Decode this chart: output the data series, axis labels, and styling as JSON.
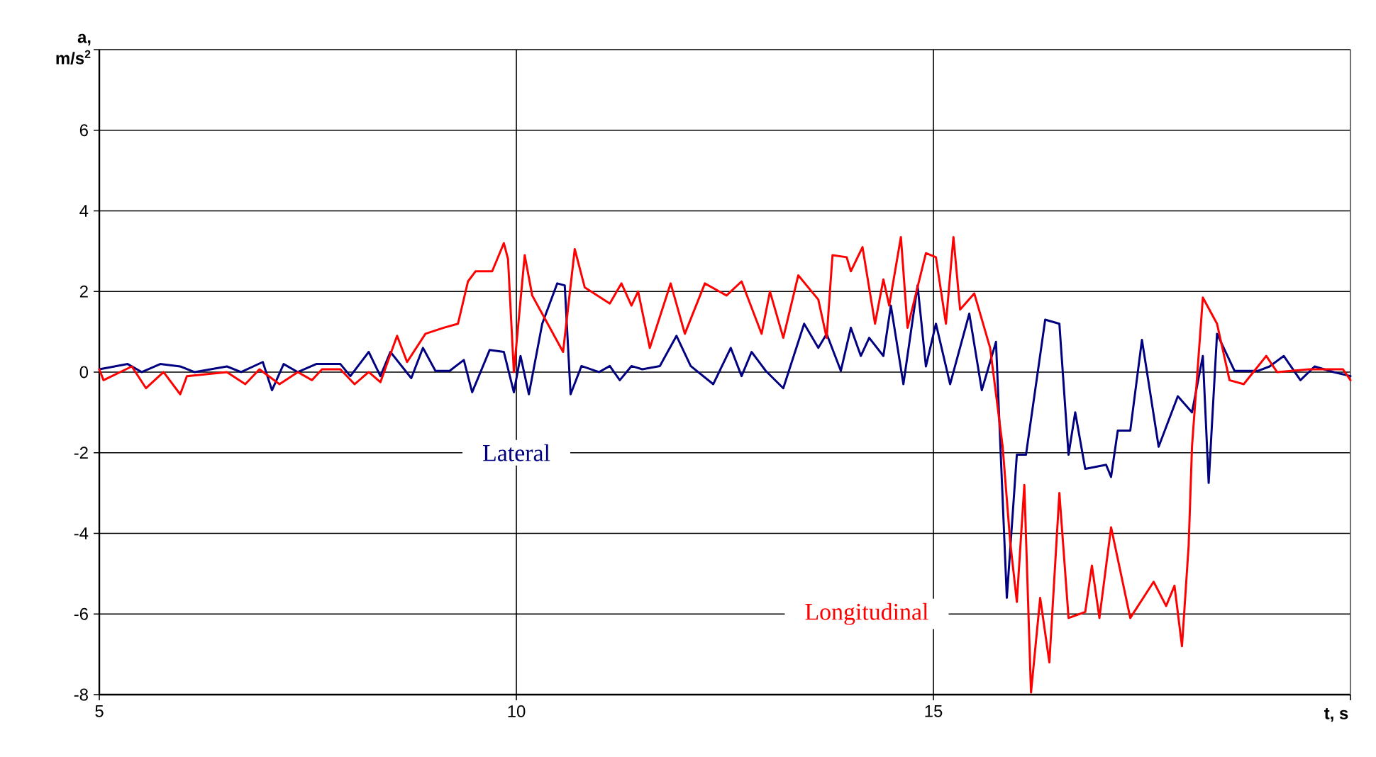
{
  "chart_data": {
    "type": "line",
    "xlabel": "t, s",
    "ylabel": "a, m/s$^{2}$",
    "xlim": [
      5,
      20
    ],
    "ylim": [
      -8,
      8
    ],
    "xticks": [
      5,
      10,
      15,
      {
        "value": 20,
        "label": null
      }
    ],
    "yticks": [
      -8,
      -6,
      -4,
      -2,
      0,
      2,
      4,
      6,
      {
        "value": 8,
        "label": null
      }
    ],
    "grid": true,
    "marker": "none",
    "line_style": "solid",
    "series": [
      {
        "name": "Lateral",
        "color": "#000080",
        "x": [
          5.0,
          5.34,
          5.51,
          5.73,
          5.97,
          6.14,
          6.53,
          6.7,
          6.96,
          7.07,
          7.21,
          7.38,
          7.6,
          7.89,
          8.01,
          8.23,
          8.37,
          8.49,
          8.74,
          8.88,
          9.03,
          9.2,
          9.37,
          9.47,
          9.68,
          9.85,
          9.97,
          10.05,
          10.15,
          10.31,
          10.49,
          10.58,
          10.65,
          10.78,
          10.99,
          11.12,
          11.24,
          11.38,
          11.51,
          11.72,
          11.92,
          12.09,
          12.36,
          12.57,
          12.7,
          12.82,
          12.99,
          13.2,
          13.45,
          13.62,
          13.72,
          13.89,
          14.01,
          14.13,
          14.23,
          14.4,
          14.49,
          14.64,
          14.81,
          14.91,
          15.03,
          15.2,
          15.43,
          15.58,
          15.75,
          15.88,
          16.0,
          16.11,
          16.34,
          16.51,
          16.62,
          16.7,
          16.82,
          17.07,
          17.13,
          17.21,
          17.36,
          17.5,
          17.7,
          17.93,
          18.1,
          18.23,
          18.3,
          18.4,
          18.61,
          18.89,
          19.03,
          19.2,
          19.4,
          19.57,
          19.8,
          20.0
        ],
        "values": [
          0.07,
          0.2,
          0,
          0.2,
          0.14,
          0,
          0.14,
          0,
          0.25,
          -0.45,
          0.2,
          0,
          0.2,
          0.2,
          -0.1,
          0.5,
          -0.1,
          0.5,
          -0.15,
          0.6,
          0.03,
          0.03,
          0.3,
          -0.5,
          0.55,
          0.5,
          -0.5,
          0.4,
          -0.55,
          1.2,
          2.2,
          2.15,
          -0.55,
          0.15,
          0,
          0.15,
          -0.2,
          0.15,
          0.07,
          0.15,
          0.9,
          0.15,
          -0.3,
          0.6,
          -0.1,
          0.5,
          0.03,
          -0.4,
          1.2,
          0.6,
          0.95,
          0.03,
          1.1,
          0.4,
          0.85,
          0.4,
          1.65,
          -0.3,
          2.15,
          0.14,
          1.2,
          -0.3,
          1.45,
          -0.45,
          0.75,
          -5.6,
          -2.05,
          -2.05,
          1.3,
          1.2,
          -2.05,
          -1.0,
          -2.4,
          -2.3,
          -2.6,
          -1.45,
          -1.45,
          0.8,
          -1.85,
          -0.6,
          -1.0,
          0.4,
          -2.75,
          0.95,
          0.03,
          0.03,
          0.14,
          0.4,
          -0.2,
          0.14,
          0,
          -0.1
        ]
      },
      {
        "name": "Longitudinal",
        "color": "#ff0000",
        "x": [
          5.0,
          5.05,
          5.39,
          5.56,
          5.77,
          5.97,
          6.05,
          6.53,
          6.75,
          6.92,
          7.16,
          7.38,
          7.55,
          7.67,
          7.89,
          8.06,
          8.23,
          8.37,
          8.57,
          8.69,
          8.91,
          9.13,
          9.3,
          9.42,
          9.51,
          9.71,
          9.85,
          9.9,
          9.97,
          10.1,
          10.19,
          10.56,
          10.7,
          10.82,
          11.12,
          11.26,
          11.38,
          11.46,
          11.6,
          11.85,
          12.02,
          12.26,
          12.52,
          12.7,
          12.94,
          13.04,
          13.2,
          13.38,
          13.62,
          13.72,
          13.79,
          13.96,
          14.01,
          14.15,
          14.3,
          14.4,
          14.47,
          14.61,
          14.69,
          14.91,
          15.03,
          15.15,
          15.24,
          15.32,
          15.49,
          15.68,
          15.83,
          15.92,
          16.0,
          16.09,
          16.17,
          16.28,
          16.39,
          16.51,
          16.62,
          16.82,
          16.9,
          16.99,
          17.13,
          17.36,
          17.64,
          17.79,
          17.89,
          17.98,
          18.06,
          18.1,
          18.23,
          18.4,
          18.55,
          18.72,
          18.99,
          19.12,
          19.51,
          19.91,
          20.0
        ],
        "values": [
          0.07,
          -0.2,
          0.14,
          -0.4,
          0,
          -0.55,
          -0.1,
          0,
          -0.3,
          0.07,
          -0.3,
          0,
          -0.2,
          0.07,
          0.07,
          -0.3,
          0,
          -0.25,
          0.9,
          0.25,
          0.95,
          1.1,
          1.2,
          2.25,
          2.5,
          2.5,
          3.2,
          2.8,
          0,
          2.9,
          1.9,
          0.5,
          3.05,
          2.1,
          1.7,
          2.2,
          1.65,
          2,
          0.6,
          2.2,
          0.95,
          2.2,
          1.9,
          2.25,
          0.95,
          2,
          0.85,
          2.4,
          1.8,
          0.85,
          2.9,
          2.85,
          2.5,
          3.1,
          1.2,
          2.3,
          1.65,
          3.35,
          1.1,
          2.95,
          2.85,
          1.2,
          3.35,
          1.55,
          1.95,
          0.6,
          -1.85,
          -4.2,
          -5.7,
          -2.8,
          -7.95,
          -5.6,
          -7.2,
          -3,
          -6.1,
          -5.95,
          -4.8,
          -6.1,
          -3.85,
          -6.1,
          -5.2,
          -5.8,
          -5.3,
          -6.8,
          -4.3,
          -1.85,
          1.85,
          1.2,
          -0.2,
          -0.3,
          0.4,
          0,
          0.07,
          0.07,
          -0.2
        ]
      }
    ]
  }
}
